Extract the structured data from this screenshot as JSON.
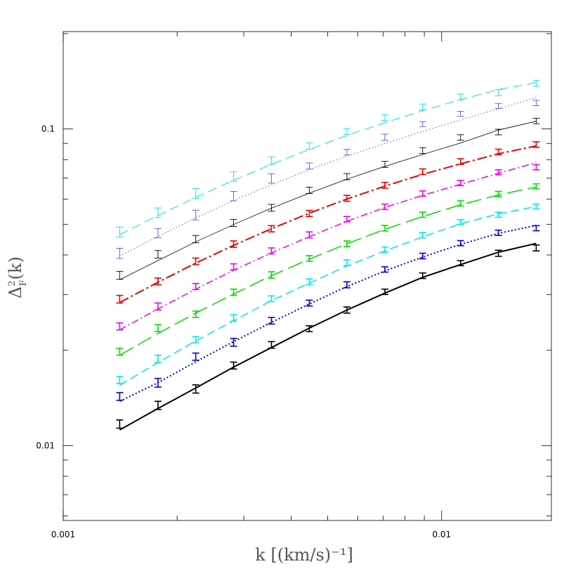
{
  "chart_data": {
    "type": "line",
    "xlabel": "k  [(km/s)⁻¹]",
    "ylabel_main": "Δ",
    "ylabel_sup": "2",
    "ylabel_sub": "F",
    "ylabel_tail": "(k)",
    "xscale": "log",
    "yscale": "log",
    "xlim": [
      0.001,
      0.0195
    ],
    "ylim": [
      0.0058,
      0.203
    ],
    "x_ticklabels": [
      {
        "value": 0.001,
        "label": "0.001"
      },
      {
        "value": 0.01,
        "label": "0.01"
      }
    ],
    "y_ticklabels": [
      {
        "value": 0.01,
        "label": "0.01"
      },
      {
        "value": 0.1,
        "label": "0.1"
      }
    ],
    "grid": false,
    "x": [
      0.00141,
      0.00178,
      0.00224,
      0.00282,
      0.00355,
      0.00447,
      0.00562,
      0.00708,
      0.00891,
      0.01122,
      0.01413,
      0.01778
    ],
    "series": [
      {
        "color": "#000000",
        "dash": "solid",
        "width": 2.0,
        "line": [
          0.0112,
          0.0131,
          0.0152,
          0.0177,
          0.0204,
          0.0235,
          0.0268,
          0.0303,
          0.034,
          0.0373,
          0.0408,
          0.0435
        ],
        "points": [
          0.0117,
          0.0134,
          0.0151,
          0.0179,
          0.0208,
          0.0234,
          0.0268,
          0.0306,
          0.0344,
          0.0377,
          0.0405,
          0.0421
        ],
        "err": [
          0.00035,
          0.0004,
          0.00045,
          0.00045,
          0.0005,
          0.0005,
          0.0006,
          0.0006,
          0.0007,
          0.0007,
          0.0009,
          0.0009
        ]
      },
      {
        "color": "#0000dd",
        "dash": "2,3",
        "width": 2.0,
        "line": [
          0.0138,
          0.0158,
          0.0184,
          0.0213,
          0.0245,
          0.028,
          0.0318,
          0.0356,
          0.0394,
          0.0432,
          0.0468,
          0.0496
        ],
        "points": [
          0.0143,
          0.0158,
          0.0191,
          0.0212,
          0.0248,
          0.0282,
          0.0322,
          0.036,
          0.0397,
          0.0436,
          0.047,
          0.0486
        ],
        "err": [
          0.0004,
          0.0005,
          0.0005,
          0.0006,
          0.0006,
          0.0006,
          0.0007,
          0.0007,
          0.0008,
          0.0008,
          0.0009,
          0.0009
        ]
      },
      {
        "color": "#00e6e6",
        "dash": "12,6",
        "width": 1.5,
        "line": [
          0.0155,
          0.0183,
          0.0214,
          0.0248,
          0.0287,
          0.0326,
          0.0369,
          0.0412,
          0.0456,
          0.0502,
          0.0539,
          0.0569
        ],
        "points": [
          0.0161,
          0.0188,
          0.0216,
          0.0253,
          0.0291,
          0.0329,
          0.0378,
          0.0416,
          0.0462,
          0.0508,
          0.0536,
          0.0569
        ],
        "err": [
          0.0004,
          0.0005,
          0.0005,
          0.0006,
          0.0006,
          0.0007,
          0.0008,
          0.0008,
          0.0009,
          0.0009,
          0.001,
          0.001
        ]
      },
      {
        "color": "#00dd00",
        "dash": "22,8",
        "width": 1.5,
        "line": [
          0.0193,
          0.0226,
          0.0262,
          0.0301,
          0.0344,
          0.0388,
          0.0434,
          0.0482,
          0.0529,
          0.0576,
          0.0619,
          0.0656
        ],
        "points": [
          0.0198,
          0.0235,
          0.026,
          0.0305,
          0.0346,
          0.039,
          0.0434,
          0.0486,
          0.0536,
          0.0582,
          0.0623,
          0.0659
        ],
        "err": [
          0.0005,
          0.0006,
          0.0006,
          0.0007,
          0.0008,
          0.0008,
          0.0009,
          0.001,
          0.001,
          0.0011,
          0.0012,
          0.0012
        ]
      },
      {
        "color": "#ee00ee",
        "dash": "10,4,2,4",
        "width": 1.5,
        "line": [
          0.0232,
          0.027,
          0.0312,
          0.0358,
          0.0406,
          0.0457,
          0.0511,
          0.0565,
          0.0617,
          0.0669,
          0.0724,
          0.0783
        ],
        "points": [
          0.0238,
          0.0275,
          0.0318,
          0.0367,
          0.0412,
          0.0463,
          0.0519,
          0.0568,
          0.0625,
          0.0675,
          0.073,
          0.0757
        ],
        "err": [
          0.0006,
          0.0007,
          0.0007,
          0.0008,
          0.0009,
          0.001,
          0.001,
          0.0011,
          0.0012,
          0.0013,
          0.0013,
          0.0014
        ]
      },
      {
        "color": "#ee0000",
        "dash": "14,4,3,4",
        "width": 2.0,
        "line": [
          0.0283,
          0.0328,
          0.0377,
          0.0429,
          0.0484,
          0.0542,
          0.0601,
          0.066,
          0.0719,
          0.0776,
          0.0835,
          0.0884
        ],
        "points": [
          0.029,
          0.033,
          0.0382,
          0.0433,
          0.0484,
          0.0541,
          0.0604,
          0.0664,
          0.0733,
          0.0789,
          0.0846,
          0.0893
        ],
        "err": [
          0.0008,
          0.0008,
          0.0009,
          0.001,
          0.0011,
          0.0012,
          0.0013,
          0.0014,
          0.0015,
          0.0016,
          0.0017,
          0.0018
        ]
      },
      {
        "color": "#000000",
        "dash": "solid",
        "width": 0.8,
        "line": [
          0.0334,
          0.0384,
          0.044,
          0.0499,
          0.0562,
          0.0627,
          0.0694,
          0.0762,
          0.0831,
          0.0903,
          0.0992,
          0.1058
        ],
        "points": [
          0.0345,
          0.0402,
          0.0449,
          0.0505,
          0.0564,
          0.064,
          0.0707,
          0.0773,
          0.0855,
          0.094,
          0.0978,
          0.106
        ],
        "err": [
          0.001,
          0.0011,
          0.0012,
          0.0013,
          0.0014,
          0.0015,
          0.0016,
          0.0017,
          0.0018,
          0.0019,
          0.002,
          0.0021
        ]
      },
      {
        "color": "#5555ee",
        "dash": "1.5,3",
        "width": 1.0,
        "line": [
          0.0397,
          0.0458,
          0.0524,
          0.0594,
          0.0667,
          0.0744,
          0.0821,
          0.09,
          0.0982,
          0.1068,
          0.1159,
          0.1256
        ],
        "points": [
          0.0405,
          0.0469,
          0.0535,
          0.0614,
          0.0698,
          0.0764,
          0.0845,
          0.0942,
          0.1036,
          0.1117,
          0.1182,
          0.1208
        ],
        "err": [
          0.0015,
          0.0016,
          0.0019,
          0.0021,
          0.0024,
          0.0017,
          0.0018,
          0.0021,
          0.0019,
          0.002,
          0.0022,
          0.0024
        ]
      },
      {
        "color": "#00e0e0",
        "dash": "13,7",
        "width": 1.0,
        "line": [
          0.0464,
          0.0533,
          0.0608,
          0.0688,
          0.0773,
          0.0862,
          0.0954,
          0.1047,
          0.1142,
          0.1238,
          0.1332,
          0.1402
        ],
        "points": [
          0.0473,
          0.0544,
          0.0626,
          0.0708,
          0.0794,
          0.0883,
          0.0982,
          0.1086,
          0.1174,
          0.1262,
          0.1303,
          0.1395
        ],
        "err": [
          0.0017,
          0.0019,
          0.0022,
          0.0025,
          0.0021,
          0.002,
          0.0021,
          0.0023,
          0.0025,
          0.0027,
          0.0029,
          0.003
        ]
      }
    ]
  }
}
